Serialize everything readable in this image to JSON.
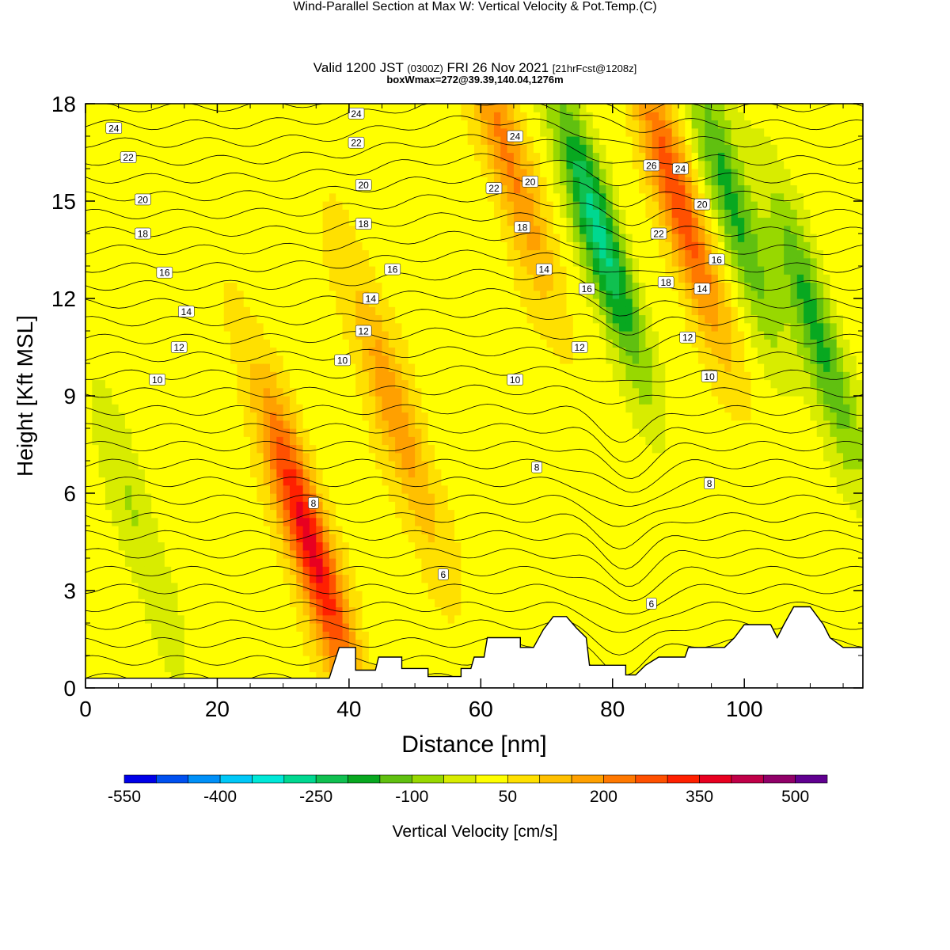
{
  "header": {
    "title": "Wind-Parallel Section at Max W: Vertical Velocity & Pot.Temp.",
    "copyright": "(C)",
    "valid_prefix": "Valid 1200 JST",
    "valid_zulu": "(0300Z)",
    "valid_date": "FRI 26 Nov 2021",
    "forecast": "[21hrFcst@1208z]",
    "boxw": "boxWmax=272@39.39,140.04,1276m"
  },
  "chart_data": {
    "type": "heatmap",
    "xlabel": "Distance [nm]",
    "ylabel": "Height [Kft MSL]",
    "xlim": [
      0,
      118
    ],
    "ylim": [
      0,
      18
    ],
    "x_ticks": [
      0,
      20,
      40,
      60,
      80,
      100
    ],
    "y_ticks": [
      0,
      3,
      6,
      9,
      12,
      15,
      18
    ],
    "colorbar": {
      "label": "Vertical Velocity [cm/s]",
      "levels": [
        -550,
        -500,
        -450,
        -400,
        -350,
        -300,
        -250,
        -200,
        -150,
        -100,
        -50,
        0,
        50,
        100,
        150,
        200,
        250,
        300,
        350,
        400,
        450,
        500,
        550
      ],
      "tick_labels": [
        "-550",
        "-400",
        "-250",
        "-100",
        "50",
        "200",
        "350",
        "500"
      ],
      "colors": [
        "#0000e8",
        "#0050f0",
        "#0090f8",
        "#00c8f8",
        "#00e8d8",
        "#00d890",
        "#10c050",
        "#08a820",
        "#60c010",
        "#98d800",
        "#d8ec00",
        "#ffff00",
        "#ffe000",
        "#ffc000",
        "#ffa000",
        "#ff7800",
        "#ff5000",
        "#ff2000",
        "#e80020",
        "#c00048",
        "#900068",
        "#600090"
      ]
    },
    "vertical_velocity_features_cm_s": [
      {
        "x": 34,
        "y": 4.5,
        "w": 350
      },
      {
        "x": 47,
        "y": 8.5,
        "w": 160
      },
      {
        "x": 64,
        "y": 16.5,
        "w": 180
      },
      {
        "x": 78,
        "y": 14,
        "w": -300
      },
      {
        "x": 90,
        "y": 15,
        "w": 260
      },
      {
        "x": 98,
        "y": 15,
        "w": -200
      },
      {
        "x": 111,
        "y": 11,
        "w": -200
      },
      {
        "x": 8,
        "y": 5,
        "w": -80
      }
    ],
    "theta_contour_labels": [
      {
        "text": "24",
        "x": 4.3,
        "y": 17.25
      },
      {
        "text": "22",
        "x": 6.5,
        "y": 16.35
      },
      {
        "text": "20",
        "x": 8.7,
        "y": 15.05
      },
      {
        "text": "18",
        "x": 8.7,
        "y": 14.0
      },
      {
        "text": "16",
        "x": 12.0,
        "y": 12.8
      },
      {
        "text": "14",
        "x": 15.3,
        "y": 11.6
      },
      {
        "text": "12",
        "x": 14.2,
        "y": 10.5
      },
      {
        "text": "10",
        "x": 10.9,
        "y": 9.5
      },
      {
        "text": "24",
        "x": 41.1,
        "y": 17.7
      },
      {
        "text": "22",
        "x": 41.1,
        "y": 16.8
      },
      {
        "text": "20",
        "x": 42.2,
        "y": 15.5
      },
      {
        "text": "18",
        "x": 42.2,
        "y": 14.3
      },
      {
        "text": "16",
        "x": 46.6,
        "y": 12.9
      },
      {
        "text": "14",
        "x": 43.3,
        "y": 12.0
      },
      {
        "text": "12",
        "x": 42.2,
        "y": 11.0
      },
      {
        "text": "10",
        "x": 39.0,
        "y": 10.1
      },
      {
        "text": "8",
        "x": 34.6,
        "y": 5.7
      },
      {
        "text": "6",
        "x": 54.3,
        "y": 3.5
      },
      {
        "text": "24",
        "x": 65.2,
        "y": 17.0
      },
      {
        "text": "22",
        "x": 62.0,
        "y": 15.4
      },
      {
        "text": "20",
        "x": 67.5,
        "y": 15.6
      },
      {
        "text": "18",
        "x": 66.3,
        "y": 14.2
      },
      {
        "text": "14",
        "x": 69.6,
        "y": 12.9
      },
      {
        "text": "12",
        "x": 75.0,
        "y": 10.5
      },
      {
        "text": "10",
        "x": 65.2,
        "y": 9.5
      },
      {
        "text": "8",
        "x": 68.5,
        "y": 6.8
      },
      {
        "text": "16",
        "x": 76.1,
        "y": 12.3
      },
      {
        "text": "26",
        "x": 85.9,
        "y": 16.1
      },
      {
        "text": "24",
        "x": 90.3,
        "y": 16.0
      },
      {
        "text": "20",
        "x": 93.6,
        "y": 14.9
      },
      {
        "text": "22",
        "x": 87.0,
        "y": 14.0
      },
      {
        "text": "16",
        "x": 95.8,
        "y": 13.2
      },
      {
        "text": "18",
        "x": 88.1,
        "y": 12.5
      },
      {
        "text": "14",
        "x": 93.6,
        "y": 12.3
      },
      {
        "text": "12",
        "x": 91.4,
        "y": 10.8
      },
      {
        "text": "10",
        "x": 94.7,
        "y": 9.6
      },
      {
        "text": "8",
        "x": 94.7,
        "y": 6.3
      },
      {
        "text": "6",
        "x": 85.9,
        "y": 2.6
      }
    ],
    "terrain": [
      [
        0,
        0.3
      ],
      [
        37,
        0.3
      ],
      [
        38.5,
        1.25
      ],
      [
        41,
        1.25
      ],
      [
        41,
        0.55
      ],
      [
        44,
        0.55
      ],
      [
        44.5,
        0.95
      ],
      [
        48,
        0.95
      ],
      [
        48,
        0.6
      ],
      [
        52,
        0.6
      ],
      [
        52,
        0.35
      ],
      [
        57,
        0.35
      ],
      [
        57,
        0.6
      ],
      [
        58.5,
        0.6
      ],
      [
        59,
        0.95
      ],
      [
        60.5,
        0.95
      ],
      [
        61,
        1.55
      ],
      [
        66,
        1.55
      ],
      [
        66,
        1.25
      ],
      [
        68,
        1.25
      ],
      [
        69.5,
        1.8
      ],
      [
        71,
        2.2
      ],
      [
        73,
        2.2
      ],
      [
        74.5,
        1.85
      ],
      [
        76,
        1.55
      ],
      [
        76.5,
        0.7
      ],
      [
        82,
        0.7
      ],
      [
        82,
        0.4
      ],
      [
        83.5,
        0.4
      ],
      [
        85,
        0.7
      ],
      [
        87,
        0.95
      ],
      [
        91,
        0.95
      ],
      [
        91.5,
        1.25
      ],
      [
        97,
        1.25
      ],
      [
        98.5,
        1.55
      ],
      [
        100,
        1.95
      ],
      [
        104,
        1.95
      ],
      [
        105,
        1.55
      ],
      [
        106,
        1.95
      ],
      [
        107.5,
        2.5
      ],
      [
        110,
        2.5
      ],
      [
        112,
        1.95
      ],
      [
        113,
        1.55
      ],
      [
        115,
        1.25
      ],
      [
        118,
        1.25
      ]
    ]
  }
}
